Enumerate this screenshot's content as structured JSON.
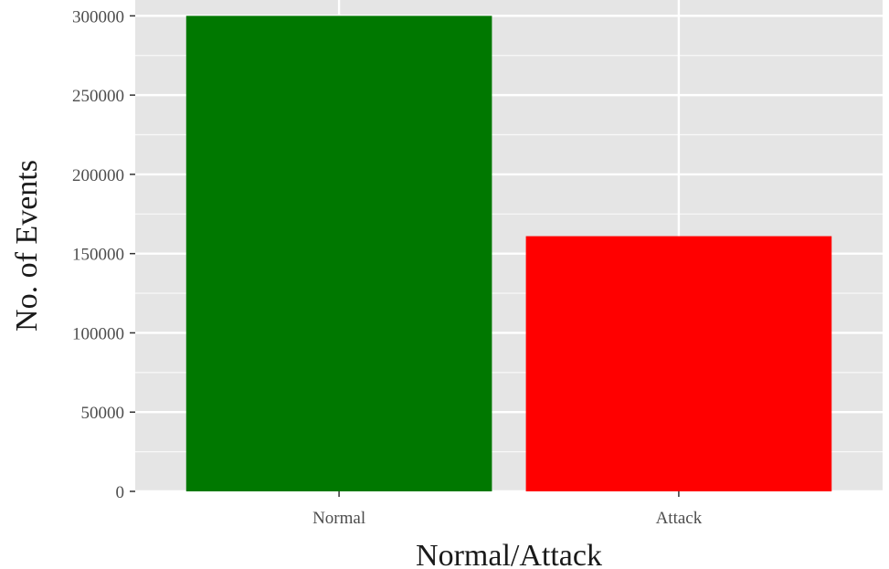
{
  "chart_data": {
    "type": "bar",
    "categories": [
      "Normal",
      "Attack"
    ],
    "values": [
      300000,
      161000
    ],
    "bar_colors": [
      "#007800",
      "#ff0000"
    ],
    "xlabel": "Normal/Attack",
    "ylabel": "No. of Events",
    "ylim": [
      0,
      310000
    ],
    "yticks": [
      0,
      50000,
      100000,
      150000,
      200000,
      250000,
      300000
    ],
    "ytick_labels": [
      "0",
      "50000",
      "100000",
      "150000",
      "200000",
      "250000",
      "300000"
    ],
    "grid": true,
    "panel_background": "#e5e5e5",
    "grid_color": "#ffffff",
    "legend": "none"
  }
}
